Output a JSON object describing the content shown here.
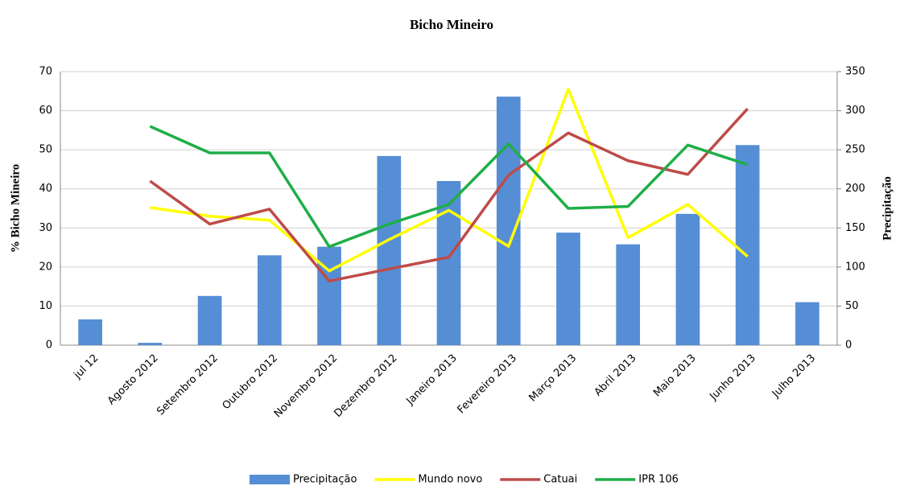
{
  "chart_data": {
    "type": "bar-line",
    "title": "Bicho Mineiro",
    "ylabel": "% Bicho Mineiro",
    "y2label": "Precipitação",
    "categories": [
      "jul 12",
      "Agosto 2012",
      "Setembro 2012",
      "Outubro 2012",
      "Novembro 2012",
      "Dezembro 2012",
      "Janeiro 2013",
      "Fevereiro 2013",
      "Março 2013",
      "Abril 2013",
      "Maio 2013",
      "Junho 2013",
      "Julho 2013"
    ],
    "series": [
      {
        "name": "Precipitação",
        "type": "bar",
        "axis": "y2",
        "color": "#558ed5",
        "values": [
          33,
          3,
          63,
          115,
          126,
          242,
          210,
          318,
          144,
          129,
          168,
          256,
          55
        ]
      },
      {
        "name": "Mundo novo",
        "type": "line",
        "color": "#ffff00",
        "values": [
          null,
          35.2,
          33,
          32,
          19,
          27,
          34.5,
          25.3,
          65.5,
          27.5,
          36,
          22.7,
          null
        ]
      },
      {
        "name": "Catuai",
        "type": "line",
        "color": "#be4b48",
        "values": [
          null,
          42,
          31,
          34.8,
          16.4,
          19.5,
          22.5,
          43.5,
          54.3,
          47.2,
          43.7,
          60.5,
          null
        ]
      },
      {
        "name": "IPR 106",
        "type": "line",
        "color": "#1fae48",
        "values": [
          null,
          56,
          49.2,
          49.2,
          25.2,
          31,
          36,
          51.5,
          35,
          35.5,
          51.2,
          46.2,
          null
        ]
      }
    ],
    "ylim": [
      0,
      70
    ],
    "yticks": [
      0,
      10,
      20,
      30,
      40,
      50,
      60,
      70
    ],
    "y2lim": [
      0,
      350
    ],
    "y2ticks": [
      0,
      50,
      100,
      150,
      200,
      250,
      300,
      350
    ],
    "grid": true,
    "legend": "bottom"
  }
}
